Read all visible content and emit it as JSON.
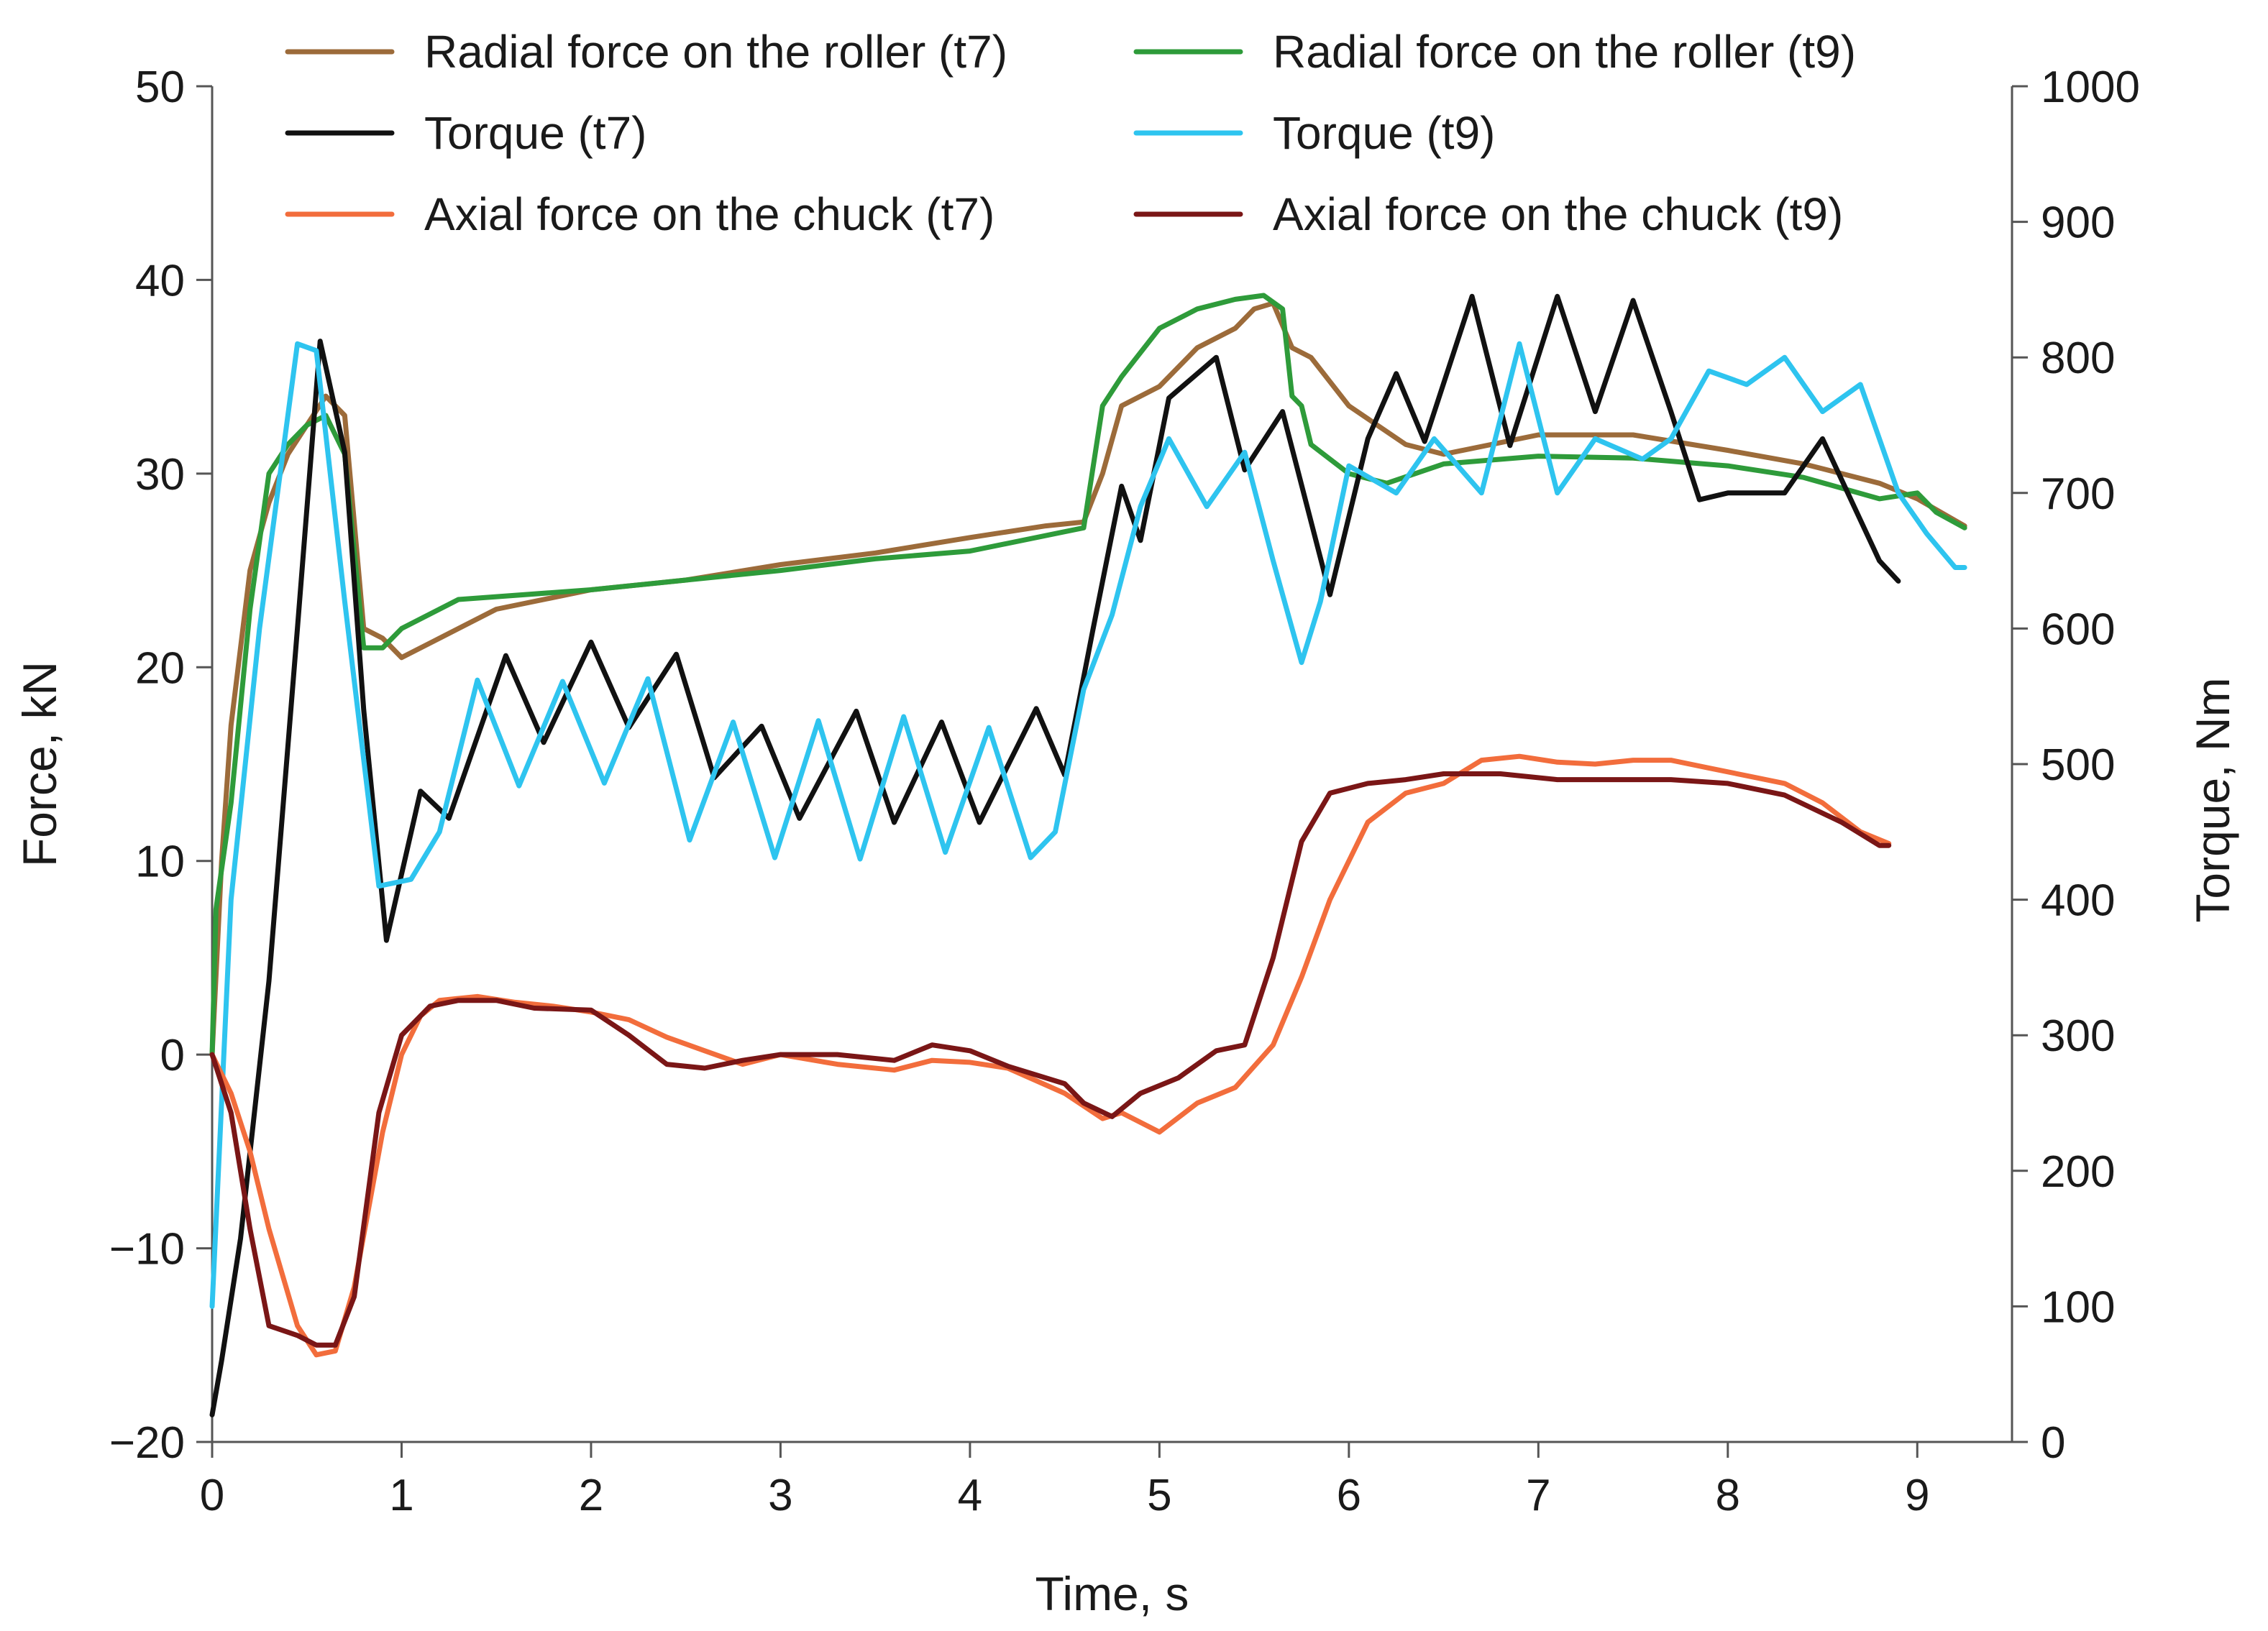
{
  "chart_data": {
    "type": "line",
    "xlabel": "Time, s",
    "ylabel": "Force, kN",
    "y2label": "Torque, Nm",
    "xlim": [
      0,
      9.5
    ],
    "ylim": [
      -20,
      50
    ],
    "y2lim": [
      0,
      1000
    ],
    "xticks": [
      "0",
      "1",
      "2",
      "3",
      "4",
      "5",
      "6",
      "7",
      "8",
      "9"
    ],
    "yticks": [
      "−20",
      "−10",
      "0",
      "10",
      "20",
      "30",
      "40",
      "50"
    ],
    "y2ticks": [
      "0",
      "100",
      "200",
      "300",
      "400",
      "500",
      "600",
      "700",
      "800",
      "900",
      "1000"
    ],
    "grid": false,
    "legend_position": "top",
    "series": [
      {
        "name": "Radial force on the roller (t7)",
        "axis": "left",
        "color": "#9C6B3A",
        "x": [
          0,
          0.05,
          0.1,
          0.2,
          0.3,
          0.4,
          0.5,
          0.6,
          0.7,
          0.8,
          0.9,
          1.0,
          1.2,
          1.5,
          2.0,
          2.5,
          3.0,
          3.5,
          4.0,
          4.4,
          4.6,
          4.7,
          4.8,
          5.0,
          5.2,
          5.4,
          5.5,
          5.6,
          5.7,
          5.8,
          6.0,
          6.3,
          6.5,
          7.0,
          7.5,
          8.0,
          8.4,
          8.8,
          9.0,
          9.25
        ],
        "y": [
          0,
          10,
          17,
          25,
          28.5,
          31,
          32.5,
          34,
          33,
          22,
          21.5,
          20.5,
          21.5,
          23,
          24,
          24.5,
          25.3,
          25.9,
          26.7,
          27.3,
          27.5,
          30,
          33.5,
          34.5,
          36.5,
          37.5,
          38.5,
          38.8,
          36.5,
          36,
          33.5,
          31.5,
          31,
          32,
          32,
          31.2,
          30.5,
          29.5,
          28.7,
          27.3
        ]
      },
      {
        "name": "Radial force on the roller (t9)",
        "axis": "left",
        "color": "#2E9B3A",
        "x": [
          0,
          0.02,
          0.1,
          0.2,
          0.3,
          0.4,
          0.5,
          0.6,
          0.7,
          0.8,
          0.9,
          1.0,
          1.3,
          2.0,
          2.5,
          3.0,
          3.5,
          4.0,
          4.5,
          4.6,
          4.7,
          4.8,
          5.0,
          5.2,
          5.4,
          5.55,
          5.65,
          5.7,
          5.75,
          5.8,
          6.0,
          6.2,
          6.5,
          7.0,
          7.5,
          8.0,
          8.4,
          8.8,
          9.0,
          9.1,
          9.25
        ],
        "y": [
          0,
          7.5,
          13,
          23,
          30,
          31.5,
          32.5,
          33,
          31,
          21,
          21,
          22,
          23.5,
          24,
          24.5,
          25,
          25.6,
          26,
          27,
          27.2,
          33.5,
          35,
          37.5,
          38.5,
          39,
          39.2,
          38.5,
          34,
          33.5,
          31.5,
          30,
          29.5,
          30.5,
          30.9,
          30.8,
          30.4,
          29.8,
          28.7,
          29,
          28,
          27.2
        ]
      },
      {
        "name": "Torque (t7)",
        "axis": "right",
        "color": "#111111",
        "x": [
          0,
          0.05,
          0.15,
          0.3,
          0.45,
          0.57,
          0.7,
          0.8,
          0.92,
          1.1,
          1.25,
          1.55,
          1.75,
          2.0,
          2.2,
          2.45,
          2.65,
          2.9,
          3.1,
          3.4,
          3.6,
          3.85,
          4.05,
          4.35,
          4.5,
          4.65,
          4.8,
          4.9,
          5.05,
          5.3,
          5.45,
          5.65,
          5.9,
          6.1,
          6.25,
          6.4,
          6.65,
          6.85,
          7.1,
          7.3,
          7.5,
          7.7,
          7.85,
          8.0,
          8.1,
          8.3,
          8.5,
          8.7,
          8.8,
          8.9
        ],
        "y": [
          20,
          60,
          150,
          340,
          600,
          812,
          730,
          540,
          370,
          480,
          460,
          580,
          516,
          590,
          527,
          581,
          490,
          528,
          460,
          539,
          457,
          531,
          457,
          541,
          492,
          600,
          705,
          665,
          770,
          800,
          717,
          760,
          625,
          740,
          788,
          738,
          845,
          735,
          845,
          760,
          842,
          760,
          695,
          700,
          700,
          700,
          740,
          680,
          650,
          635
        ]
      },
      {
        "name": "Torque (t9)",
        "axis": "right",
        "color": "#2EC4EF",
        "x": [
          0,
          0.1,
          0.25,
          0.45,
          0.55,
          0.7,
          0.88,
          1.05,
          1.2,
          1.4,
          1.62,
          1.85,
          2.07,
          2.3,
          2.52,
          2.75,
          2.97,
          3.2,
          3.42,
          3.65,
          3.87,
          4.1,
          4.32,
          4.45,
          4.6,
          4.75,
          4.9,
          5.05,
          5.25,
          5.45,
          5.6,
          5.75,
          5.85,
          6.0,
          6.25,
          6.45,
          6.7,
          6.9,
          7.1,
          7.3,
          7.55,
          7.7,
          7.9,
          8.1,
          8.3,
          8.5,
          8.7,
          8.9,
          9.05,
          9.2,
          9.25
        ],
        "y": [
          100,
          400,
          600,
          810,
          805,
          620,
          410,
          415,
          450,
          562,
          484,
          561,
          486,
          563,
          444,
          531,
          431,
          532,
          430,
          535,
          435,
          527,
          431,
          450,
          555,
          610,
          690,
          740,
          690,
          730,
          650,
          575,
          620,
          720,
          700,
          740,
          700,
          810,
          700,
          740,
          725,
          740,
          790,
          780,
          800,
          760,
          780,
          700,
          670,
          645,
          645
        ]
      },
      {
        "name": "Axial force on the chuck (t7)",
        "axis": "left",
        "color": "#F26D3C",
        "x": [
          0,
          0.1,
          0.2,
          0.3,
          0.45,
          0.55,
          0.65,
          0.75,
          0.9,
          1.0,
          1.1,
          1.2,
          1.4,
          1.6,
          1.8,
          2.0,
          2.2,
          2.4,
          2.6,
          2.8,
          3.0,
          3.3,
          3.6,
          3.8,
          4.0,
          4.2,
          4.5,
          4.7,
          4.8,
          5.0,
          5.2,
          5.4,
          5.6,
          5.75,
          5.9,
          6.1,
          6.3,
          6.5,
          6.7,
          6.9,
          7.1,
          7.3,
          7.5,
          7.7,
          7.9,
          8.1,
          8.3,
          8.5,
          8.7,
          8.85
        ],
        "y": [
          0,
          -2,
          -5,
          -9,
          -14,
          -15.5,
          -15.3,
          -12,
          -4,
          0,
          2,
          2.8,
          3,
          2.7,
          2.5,
          2.2,
          1.8,
          0.9,
          0.2,
          -0.5,
          0,
          -0.5,
          -0.8,
          -0.3,
          -0.4,
          -0.7,
          -2,
          -3.3,
          -3,
          -4,
          -2.5,
          -1.7,
          0.5,
          4,
          8,
          12,
          13.5,
          14,
          15.2,
          15.4,
          15.1,
          15,
          15.2,
          15.2,
          14.8,
          14.4,
          14,
          13,
          11.5,
          10.9
        ]
      },
      {
        "name": "Axial force on the chuck (t9)",
        "axis": "left",
        "color": "#7A1616",
        "x": [
          0,
          0.1,
          0.2,
          0.3,
          0.45,
          0.55,
          0.65,
          0.75,
          0.88,
          1.0,
          1.15,
          1.3,
          1.5,
          1.7,
          2.0,
          2.2,
          2.4,
          2.6,
          2.8,
          3.0,
          3.3,
          3.6,
          3.8,
          4.0,
          4.2,
          4.5,
          4.6,
          4.75,
          4.9,
          5.1,
          5.3,
          5.45,
          5.6,
          5.75,
          5.9,
          6.1,
          6.3,
          6.5,
          6.8,
          7.1,
          7.4,
          7.7,
          8.0,
          8.3,
          8.6,
          8.8,
          8.85
        ],
        "y": [
          0,
          -3,
          -9,
          -14,
          -14.5,
          -15,
          -15,
          -12.5,
          -3,
          1,
          2.5,
          2.8,
          2.8,
          2.4,
          2.3,
          1,
          -0.5,
          -0.7,
          -0.3,
          0,
          0,
          -0.3,
          0.5,
          0.2,
          -0.6,
          -1.5,
          -2.5,
          -3.2,
          -2,
          -1.2,
          0.2,
          0.5,
          5,
          11,
          13.5,
          14,
          14.2,
          14.5,
          14.5,
          14.2,
          14.2,
          14.2,
          14,
          13.4,
          12,
          10.8,
          10.8
        ]
      }
    ]
  }
}
